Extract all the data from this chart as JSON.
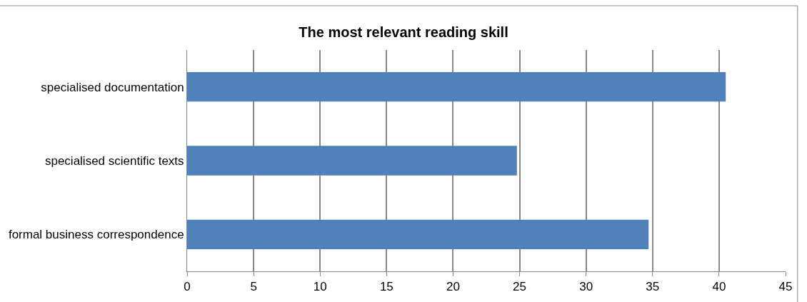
{
  "chart_data": {
    "type": "bar",
    "orientation": "horizontal",
    "title": "The most relevant reading skill",
    "categories": [
      "specialised documentation",
      "specialised scientific texts",
      "formal business correspondence"
    ],
    "values": [
      40.5,
      24.8,
      34.7
    ],
    "color": "#4f81bd",
    "xlim": [
      0,
      45
    ],
    "xticks": [
      0,
      5,
      10,
      15,
      20,
      25,
      30,
      35,
      40,
      45
    ],
    "grid": "x",
    "legend": false
  }
}
